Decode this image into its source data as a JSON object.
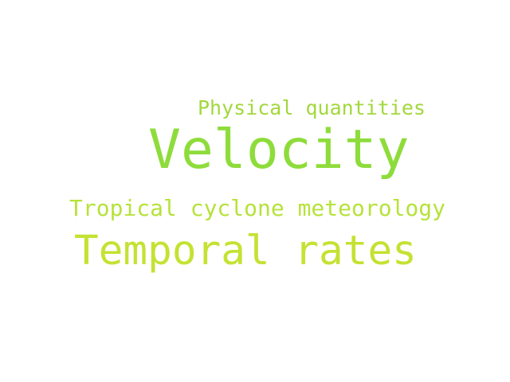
{
  "words": [
    {
      "text": "Physical quantities",
      "color": "#a2d83c"
    },
    {
      "text": "Velocity",
      "color": "#8edc3b"
    },
    {
      "text": "Tropical cyclone meteorology",
      "color": "#b6e23a"
    },
    {
      "text": "Temporal rates",
      "color": "#c4e232"
    }
  ]
}
